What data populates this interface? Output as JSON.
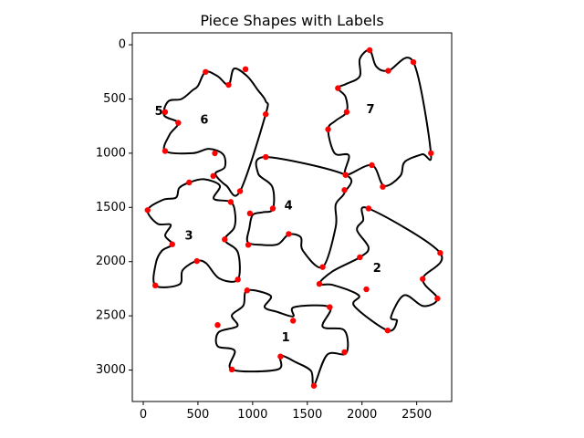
{
  "chart_data": {
    "type": "scatter",
    "title": "Piece Shapes with Labels",
    "xlabel": "",
    "ylabel": "",
    "xlim": [
      -100,
      2820
    ],
    "ylim": [
      3290,
      -110
    ],
    "y_inverted": true,
    "grid": false,
    "x_ticks": [
      0,
      500,
      1000,
      1500,
      2000,
      2500
    ],
    "y_ticks": [
      0,
      500,
      1000,
      1500,
      2000,
      2500,
      3000
    ],
    "colors": {
      "outline": "#000000",
      "corner_point": "#ff0000",
      "axes": "#000000"
    },
    "pieces": [
      {
        "label": "1",
        "label_pos": [
          1265,
          2705
        ],
        "outline": [
          [
            950,
            2265
          ],
          [
            1165,
            2315
          ],
          [
            1110,
            2420
          ],
          [
            1230,
            2465
          ],
          [
            1370,
            2505
          ],
          [
            1380,
            2420
          ],
          [
            1705,
            2420
          ],
          [
            1640,
            2600
          ],
          [
            1840,
            2635
          ],
          [
            1855,
            2845
          ],
          [
            1680,
            2860
          ],
          [
            1560,
            3145
          ],
          [
            1535,
            3010
          ],
          [
            1400,
            2930
          ],
          [
            1255,
            2870
          ],
          [
            1230,
            2995
          ],
          [
            810,
            2995
          ],
          [
            835,
            2820
          ],
          [
            680,
            2780
          ],
          [
            690,
            2650
          ],
          [
            860,
            2595
          ],
          [
            810,
            2495
          ],
          [
            915,
            2405
          ]
        ],
        "corners": [
          [
            950,
            2265
          ],
          [
            1705,
            2420
          ],
          [
            1840,
            2835
          ],
          [
            1560,
            3145
          ],
          [
            810,
            2995
          ],
          [
            680,
            2585
          ],
          [
            1370,
            2545
          ],
          [
            1255,
            2875
          ]
        ]
      },
      {
        "label": "2",
        "label_pos": [
          2100,
          2065
        ],
        "outline": [
          [
            2060,
            1510
          ],
          [
            2715,
            1920
          ],
          [
            2555,
            2160
          ],
          [
            2690,
            2340
          ],
          [
            2560,
            2410
          ],
          [
            2385,
            2310
          ],
          [
            2265,
            2510
          ],
          [
            2320,
            2545
          ],
          [
            2235,
            2635
          ],
          [
            1930,
            2410
          ],
          [
            1970,
            2310
          ],
          [
            1735,
            2215
          ],
          [
            1610,
            2205
          ],
          [
            1730,
            2090
          ],
          [
            1980,
            1960
          ],
          [
            2060,
            1870
          ],
          [
            1955,
            1710
          ],
          [
            2010,
            1620
          ]
        ],
        "corners": [
          [
            2060,
            1510
          ],
          [
            2715,
            1920
          ],
          [
            2555,
            2160
          ],
          [
            2690,
            2340
          ],
          [
            2235,
            2635
          ],
          [
            2040,
            2255
          ],
          [
            1610,
            2205
          ],
          [
            1980,
            1960
          ]
        ]
      },
      {
        "label": "3",
        "label_pos": [
          380,
          1765
        ],
        "outline": [
          [
            420,
            1270
          ],
          [
            555,
            1240
          ],
          [
            700,
            1300
          ],
          [
            645,
            1420
          ],
          [
            800,
            1450
          ],
          [
            840,
            1560
          ],
          [
            830,
            1690
          ],
          [
            745,
            1800
          ],
          [
            865,
            1915
          ],
          [
            865,
            2165
          ],
          [
            695,
            2155
          ],
          [
            575,
            2015
          ],
          [
            485,
            1995
          ],
          [
            360,
            2080
          ],
          [
            330,
            2210
          ],
          [
            110,
            2220
          ],
          [
            115,
            2015
          ],
          [
            170,
            1900
          ],
          [
            265,
            1840
          ],
          [
            200,
            1760
          ],
          [
            250,
            1660
          ],
          [
            130,
            1650
          ],
          [
            40,
            1525
          ],
          [
            180,
            1430
          ],
          [
            300,
            1410
          ],
          [
            330,
            1320
          ]
        ],
        "corners": [
          [
            420,
            1270
          ],
          [
            800,
            1450
          ],
          [
            745,
            1795
          ],
          [
            865,
            2165
          ],
          [
            490,
            1995
          ],
          [
            110,
            2220
          ],
          [
            265,
            1840
          ],
          [
            40,
            1525
          ]
        ]
      },
      {
        "label": "4",
        "label_pos": [
          1290,
          1490
        ],
        "outline": [
          [
            1120,
            1035
          ],
          [
            1850,
            1200
          ],
          [
            1840,
            1365
          ],
          [
            1760,
            1475
          ],
          [
            1760,
            1680
          ],
          [
            1640,
            2050
          ],
          [
            1460,
            1900
          ],
          [
            1440,
            1775
          ],
          [
            1330,
            1750
          ],
          [
            1230,
            1840
          ],
          [
            1080,
            1845
          ],
          [
            955,
            1820
          ],
          [
            970,
            1690
          ],
          [
            1000,
            1570
          ],
          [
            1090,
            1545
          ],
          [
            1185,
            1515
          ],
          [
            1180,
            1310
          ],
          [
            1050,
            1185
          ]
        ],
        "corners": [
          [
            1120,
            1035
          ],
          [
            1850,
            1200
          ],
          [
            1840,
            1340
          ],
          [
            1640,
            2050
          ],
          [
            1330,
            1745
          ],
          [
            960,
            1845
          ],
          [
            975,
            1555
          ],
          [
            1185,
            1510
          ]
        ]
      },
      {
        "label": "5",
        "label_pos": [
          105,
          620
        ],
        "outline": [
          [
            200,
            620
          ],
          [
            180,
            630
          ],
          [
            200,
            640
          ]
        ],
        "corners": [
          [
            200,
            620
          ]
        ]
      },
      {
        "label": "6",
        "label_pos": [
          520,
          700
        ],
        "outline": [
          [
            570,
            250
          ],
          [
            680,
            290
          ],
          [
            780,
            370
          ],
          [
            830,
            220
          ],
          [
            950,
            290
          ],
          [
            1050,
            420
          ],
          [
            1120,
            520
          ],
          [
            1120,
            640
          ],
          [
            885,
            1350
          ],
          [
            760,
            1300
          ],
          [
            660,
            1190
          ],
          [
            745,
            1130
          ],
          [
            730,
            1010
          ],
          [
            600,
            960
          ],
          [
            450,
            1000
          ],
          [
            200,
            980
          ],
          [
            240,
            830
          ],
          [
            320,
            720
          ],
          [
            190,
            650
          ],
          [
            230,
            520
          ],
          [
            350,
            500
          ],
          [
            450,
            420
          ],
          [
            500,
            380
          ]
        ],
        "corners": [
          [
            570,
            250
          ],
          [
            780,
            370
          ],
          [
            935,
            225
          ],
          [
            1120,
            640
          ],
          [
            885,
            1350
          ],
          [
            640,
            1210
          ],
          [
            655,
            1000
          ],
          [
            200,
            980
          ],
          [
            320,
            720
          ]
        ]
      },
      {
        "label": "7",
        "label_pos": [
          2040,
          600
        ],
        "outline": [
          [
            2070,
            50
          ],
          [
            2130,
            200
          ],
          [
            2240,
            240
          ],
          [
            2470,
            160
          ],
          [
            2630,
            1000
          ],
          [
            2550,
            1010
          ],
          [
            2390,
            1080
          ],
          [
            2350,
            1210
          ],
          [
            2200,
            1300
          ],
          [
            2090,
            1110
          ],
          [
            1850,
            1200
          ],
          [
            1880,
            1020
          ],
          [
            1750,
            1000
          ],
          [
            1690,
            780
          ],
          [
            1760,
            700
          ],
          [
            1860,
            620
          ],
          [
            1850,
            480
          ],
          [
            1780,
            400
          ],
          [
            1860,
            360
          ],
          [
            1980,
            290
          ],
          [
            1980,
            130
          ]
        ],
        "corners": [
          [
            2070,
            50
          ],
          [
            2240,
            240
          ],
          [
            2470,
            160
          ],
          [
            2630,
            1000
          ],
          [
            2190,
            1310
          ],
          [
            2090,
            1110
          ],
          [
            1850,
            1200
          ],
          [
            1690,
            780
          ],
          [
            1860,
            620
          ],
          [
            1780,
            400
          ]
        ]
      }
    ]
  }
}
